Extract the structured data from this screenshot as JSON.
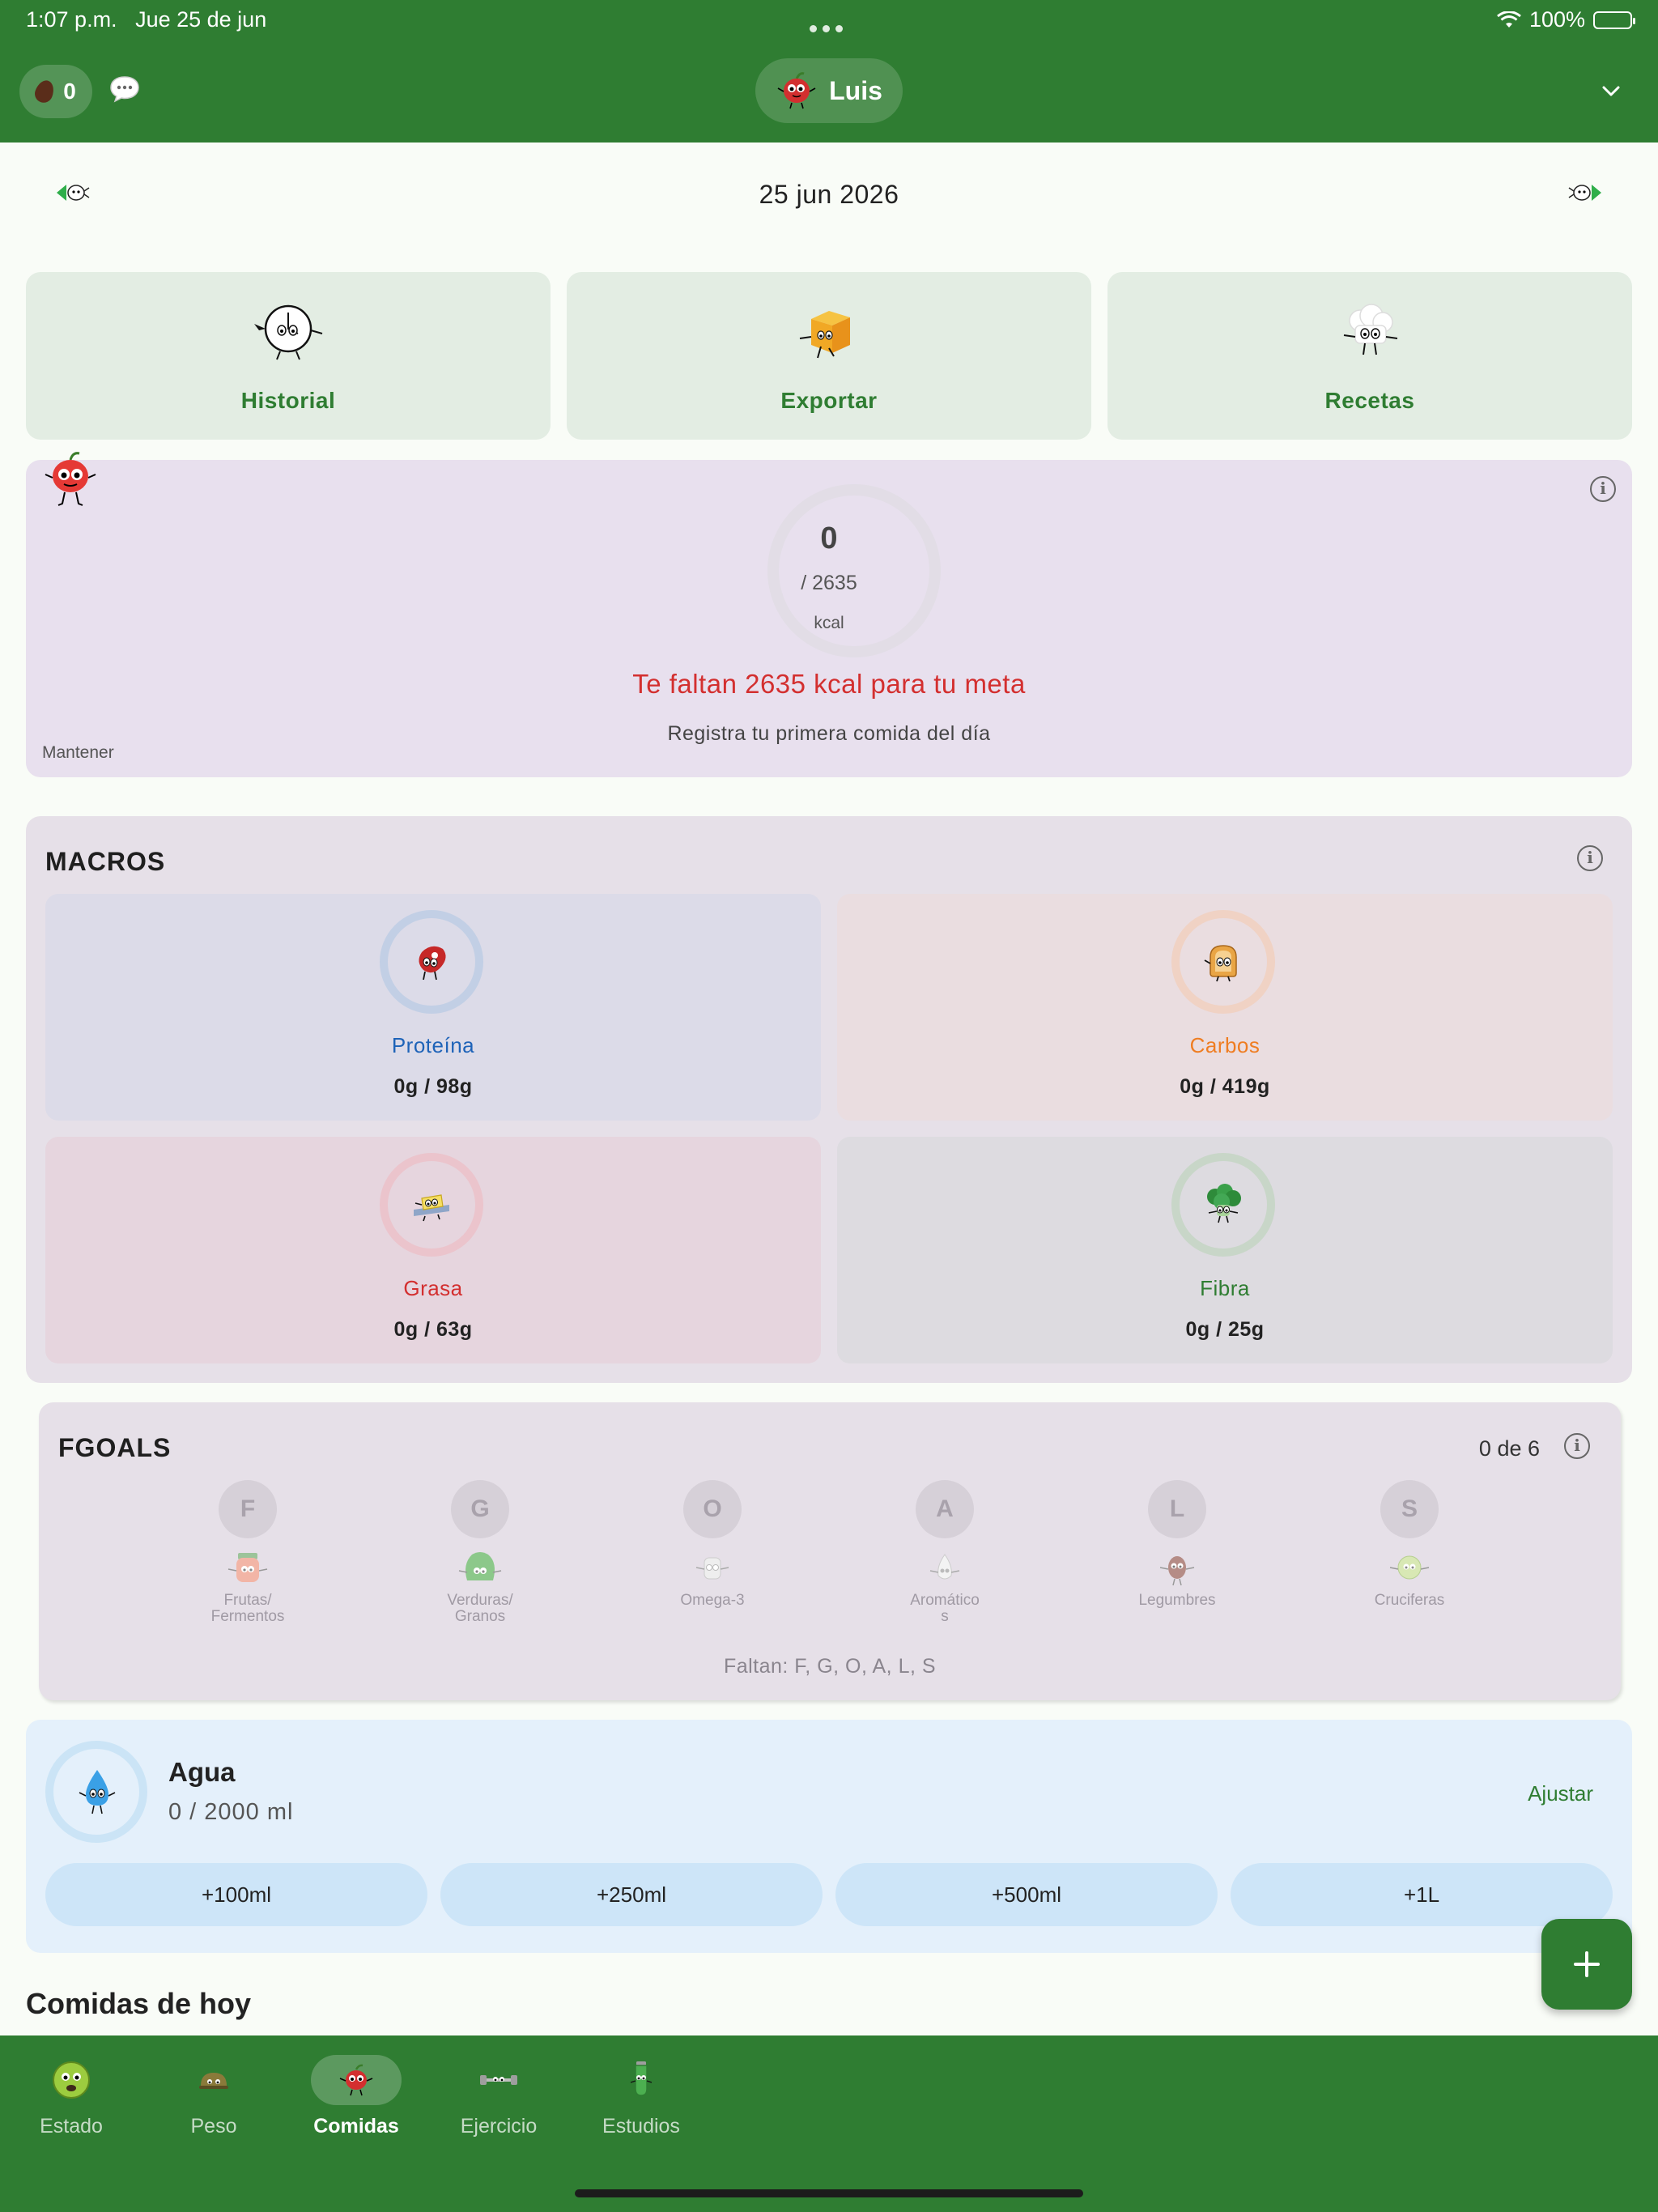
{
  "status_bar": {
    "time": "1:07 p.m.",
    "date": "Jue 25 de jun",
    "battery": "100%"
  },
  "header": {
    "coins": "0",
    "user_name": "Luis"
  },
  "date_nav": {
    "date": "25 jun 2026"
  },
  "quick_actions": [
    {
      "label": "Historial",
      "icon": "historial-icon"
    },
    {
      "label": "Exportar",
      "icon": "export-box-icon"
    },
    {
      "label": "Recetas",
      "icon": "chef-hat-icon"
    }
  ],
  "calories": {
    "consumed": "0",
    "goal": "/ 2635",
    "unit": "kcal",
    "message": "Te faltan 2635 kcal para tu meta",
    "hint": "Registra tu primera comida del día",
    "mode": "Mantener"
  },
  "macros": {
    "title": "MACROS",
    "items": [
      {
        "name": "Proteína",
        "value": "0g / 98g",
        "color": "#1e63b8"
      },
      {
        "name": "Carbos",
        "value": "0g / 419g",
        "color": "#ef7d22"
      },
      {
        "name": "Grasa",
        "value": "0g / 63g",
        "color": "#d32f2f"
      },
      {
        "name": "Fibra",
        "value": "0g / 25g",
        "color": "#2f7d32"
      }
    ]
  },
  "fgoals": {
    "title": "FGOALS",
    "count": "0 de 6",
    "items": [
      {
        "letter": "F",
        "label_line1": "Frutas/",
        "label_line2": "Fermentos"
      },
      {
        "letter": "G",
        "label_line1": "Verduras/",
        "label_line2": "Granos"
      },
      {
        "letter": "O",
        "label_line1": "Omega-3",
        "label_line2": ""
      },
      {
        "letter": "A",
        "label_line1": "Aromático",
        "label_line2": "s"
      },
      {
        "letter": "L",
        "label_line1": "Legumbres",
        "label_line2": ""
      },
      {
        "letter": "S",
        "label_line1": "Cruciferas",
        "label_line2": ""
      }
    ],
    "missing": "Faltan: F, G, O, A, L, S"
  },
  "water": {
    "title": "Agua",
    "value": "0 / 2000 ml",
    "adjust": "Ajustar",
    "buttons": [
      "+100ml",
      "+250ml",
      "+500ml",
      "+1L"
    ]
  },
  "today_meals": {
    "title": "Comidas de hoy"
  },
  "bottom_nav": [
    {
      "label": "Estado",
      "active": false
    },
    {
      "label": "Peso",
      "active": false
    },
    {
      "label": "Comidas",
      "active": true
    },
    {
      "label": "Ejercicio",
      "active": false
    },
    {
      "label": "Estudios",
      "active": false
    }
  ],
  "colors": {
    "brand_green": "#2f7d32",
    "warning_red": "#d32f2f",
    "water_blue": "#e4f0fb"
  }
}
